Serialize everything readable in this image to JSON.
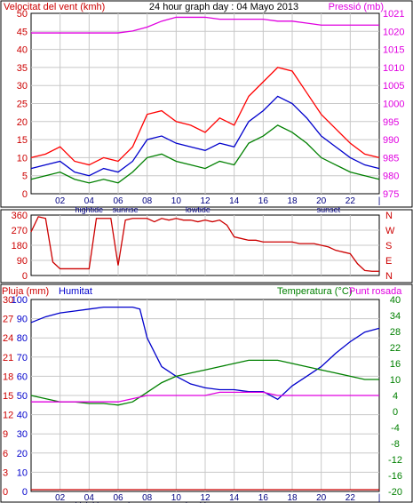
{
  "colors": {
    "background": "#ffffff",
    "frame": "#000000",
    "grid": "#c8c8c8",
    "red": "#ff0000",
    "darkred": "#cc0000",
    "blue": "#0000cc",
    "green": "#008000",
    "magenta": "#e000e0",
    "axis_text": "#000080"
  },
  "charts": {
    "wind": {
      "title": "24 hour graph day : 04 Mayo 2013",
      "left_label": "Velocitat del vent (kmh)",
      "right_label": "Pressió (mb)",
      "left_ticks": [
        "0",
        "5",
        "10",
        "15",
        "20",
        "25",
        "30",
        "35",
        "40",
        "45",
        "50"
      ],
      "right_ticks": [
        "975",
        "980",
        "985",
        "990",
        "995",
        "1000",
        "1005",
        "1010",
        "1015",
        "1020",
        "1021"
      ],
      "x_ticks": [
        "02",
        "04",
        "06",
        "08",
        "10",
        "12",
        "14",
        "16",
        "18",
        "20",
        "22",
        "|"
      ],
      "events": [
        "hightide",
        "sunrise",
        "lowtide",
        "sunset"
      ]
    },
    "direction": {
      "left_ticks": [
        "0",
        "90",
        "180",
        "270",
        "360"
      ],
      "right_letters": [
        "N",
        "W",
        "S",
        "E",
        "N"
      ]
    },
    "rain": {
      "left_label": "Pluja (mm)",
      "mid_label": "Humitat",
      "right_label": "Temperatura (°C)",
      "right_label2": "Punt rosada",
      "rain_ticks": [
        "0",
        "3",
        "6",
        "9",
        "12",
        "15",
        "18",
        "21",
        "24",
        "27",
        "30"
      ],
      "hum_ticks": [
        "0",
        "10",
        "20",
        "30",
        "40",
        "50",
        "60",
        "70",
        "80",
        "90",
        "100"
      ],
      "temp_ticks": [
        "-20",
        "-16",
        "-12",
        "-8",
        "-4",
        "0",
        "4",
        "10",
        "16",
        "22",
        "28",
        "34",
        "40"
      ],
      "x_ticks": [
        "02",
        "04",
        "06",
        "08",
        "10",
        "12",
        "14",
        "16",
        "18",
        "20",
        "22",
        "|"
      ],
      "events": [
        "hightide",
        "sunrise",
        "lowtide",
        "sunset"
      ]
    }
  },
  "chart_data": [
    {
      "type": "line",
      "title": "24 hour graph day : 04 Mayo 2013",
      "xlabel": "",
      "ylabel": "Velocitat del vent (kmh)",
      "y2label": "Pressió (mb)",
      "xlim": [
        0,
        24
      ],
      "ylim": [
        0,
        50
      ],
      "y2lim": [
        975,
        1021
      ],
      "grid": true,
      "series": [
        {
          "name": "",
          "color": "#ff0000",
          "x": [
            0,
            1,
            2,
            3,
            4,
            5,
            6,
            7,
            8,
            9,
            10,
            11,
            12,
            13,
            14,
            15,
            16,
            17,
            18,
            19,
            20,
            21,
            22,
            23,
            24
          ],
          "values": [
            10,
            11,
            13,
            9,
            8,
            10,
            9,
            13,
            22,
            23,
            20,
            19,
            17,
            21,
            19,
            27,
            31,
            35,
            34,
            28,
            22,
            18,
            14,
            11,
            10
          ]
        },
        {
          "name": "",
          "color": "#0000cc",
          "x": [
            0,
            1,
            2,
            3,
            4,
            5,
            6,
            7,
            8,
            9,
            10,
            11,
            12,
            13,
            14,
            15,
            16,
            17,
            18,
            19,
            20,
            21,
            22,
            23,
            24
          ],
          "values": [
            7,
            8,
            9,
            6,
            5,
            7,
            6,
            9,
            15,
            16,
            14,
            13,
            12,
            14,
            13,
            20,
            23,
            27,
            25,
            21,
            16,
            13,
            10,
            8,
            7
          ]
        },
        {
          "name": "",
          "color": "#008000",
          "x": [
            0,
            1,
            2,
            3,
            4,
            5,
            6,
            7,
            8,
            9,
            10,
            11,
            12,
            13,
            14,
            15,
            16,
            17,
            18,
            19,
            20,
            21,
            22,
            23,
            24
          ],
          "values": [
            4,
            5,
            6,
            4,
            3,
            4,
            3,
            6,
            10,
            11,
            9,
            8,
            7,
            9,
            8,
            14,
            16,
            19,
            17,
            14,
            10,
            8,
            6,
            5,
            4
          ]
        },
        {
          "name": "",
          "color": "#e000e0",
          "x": [
            0,
            1,
            2,
            3,
            4,
            5,
            6,
            7,
            8,
            9,
            10,
            11,
            12,
            13,
            14,
            15,
            16,
            17,
            18,
            19,
            20,
            21,
            22,
            23,
            24
          ],
          "values": [
            1016,
            1016,
            1016,
            1016,
            1016,
            1016,
            1016,
            1016.5,
            1017.5,
            1019,
            1020,
            1020,
            1020,
            1019.5,
            1019.5,
            1019.5,
            1019.5,
            1019,
            1019,
            1018.5,
            1018,
            1018,
            1018,
            1018,
            1018
          ]
        }
      ]
    },
    {
      "type": "line",
      "xlabel": "",
      "ylabel": "",
      "xlim": [
        0,
        24
      ],
      "ylim": [
        0,
        360
      ],
      "grid": true,
      "series": [
        {
          "name": "",
          "color": "#cc0000",
          "x": [
            0,
            0.5,
            1,
            1.5,
            2,
            2.5,
            3,
            3.5,
            4,
            4.5,
            5,
            5.5,
            6,
            6.5,
            7,
            7.5,
            8,
            8.5,
            9,
            9.5,
            10,
            10.5,
            11,
            11.5,
            12,
            12.5,
            13,
            13.5,
            14,
            14.5,
            15,
            15.5,
            16,
            16.5,
            17,
            17.5,
            18,
            18.5,
            19,
            19.5,
            20,
            20.5,
            21,
            21.5,
            22,
            22.5,
            23,
            23.5,
            24
          ],
          "values": [
            260,
            350,
            340,
            80,
            40,
            40,
            40,
            40,
            40,
            340,
            340,
            340,
            60,
            330,
            340,
            340,
            340,
            320,
            340,
            330,
            340,
            330,
            330,
            320,
            330,
            320,
            330,
            300,
            230,
            220,
            210,
            210,
            200,
            200,
            200,
            200,
            200,
            190,
            190,
            190,
            180,
            170,
            150,
            140,
            130,
            70,
            30,
            25,
            25
          ]
        }
      ]
    },
    {
      "type": "line",
      "xlabel": "",
      "ylabel": "Humitat",
      "y2label": "Temperatura (°C)",
      "xlim": [
        0,
        24
      ],
      "ylim": [
        0,
        100
      ],
      "y2lim": [
        -20,
        40
      ],
      "grid": true,
      "series": [
        {
          "name": "",
          "color": "#0000cc",
          "x": [
            0,
            1,
            2,
            3,
            4,
            5,
            6,
            7,
            7.5,
            8,
            9,
            10,
            11,
            12,
            13,
            14,
            15,
            16,
            17,
            18,
            19,
            20,
            21,
            22,
            23,
            24
          ],
          "values": [
            88,
            91,
            93,
            94,
            95,
            96,
            96,
            96,
            95,
            80,
            65,
            60,
            56,
            54,
            53,
            53,
            52,
            52,
            48,
            55,
            60,
            65,
            72,
            78,
            83,
            85
          ]
        },
        {
          "name": "",
          "color": "#008000",
          "x": [
            0,
            1,
            2,
            3,
            4,
            5,
            6,
            7,
            8,
            9,
            10,
            11,
            12,
            13,
            14,
            15,
            16,
            17,
            18,
            19,
            20,
            21,
            22,
            23,
            24
          ],
          "values": [
            10,
            9,
            8,
            8,
            7.5,
            7.5,
            7,
            8,
            11,
            14,
            16,
            17,
            18,
            19,
            20,
            21,
            21,
            21,
            20,
            19,
            18,
            17,
            16,
            15,
            15
          ]
        },
        {
          "name": "",
          "color": "#e000e0",
          "x": [
            0,
            1,
            2,
            3,
            4,
            5,
            6,
            7,
            8,
            9,
            10,
            11,
            12,
            13,
            14,
            15,
            16,
            17,
            18,
            19,
            20,
            21,
            22,
            23,
            24
          ],
          "values": [
            8,
            8,
            8,
            8,
            8,
            8,
            8,
            9,
            10,
            10,
            10,
            10,
            10,
            11,
            11,
            11,
            11,
            10,
            10,
            10,
            10,
            10,
            10,
            10,
            10
          ]
        },
        {
          "name": "",
          "color": "#cc0000",
          "x": [
            0,
            24
          ],
          "values": [
            0,
            0
          ]
        }
      ]
    }
  ]
}
